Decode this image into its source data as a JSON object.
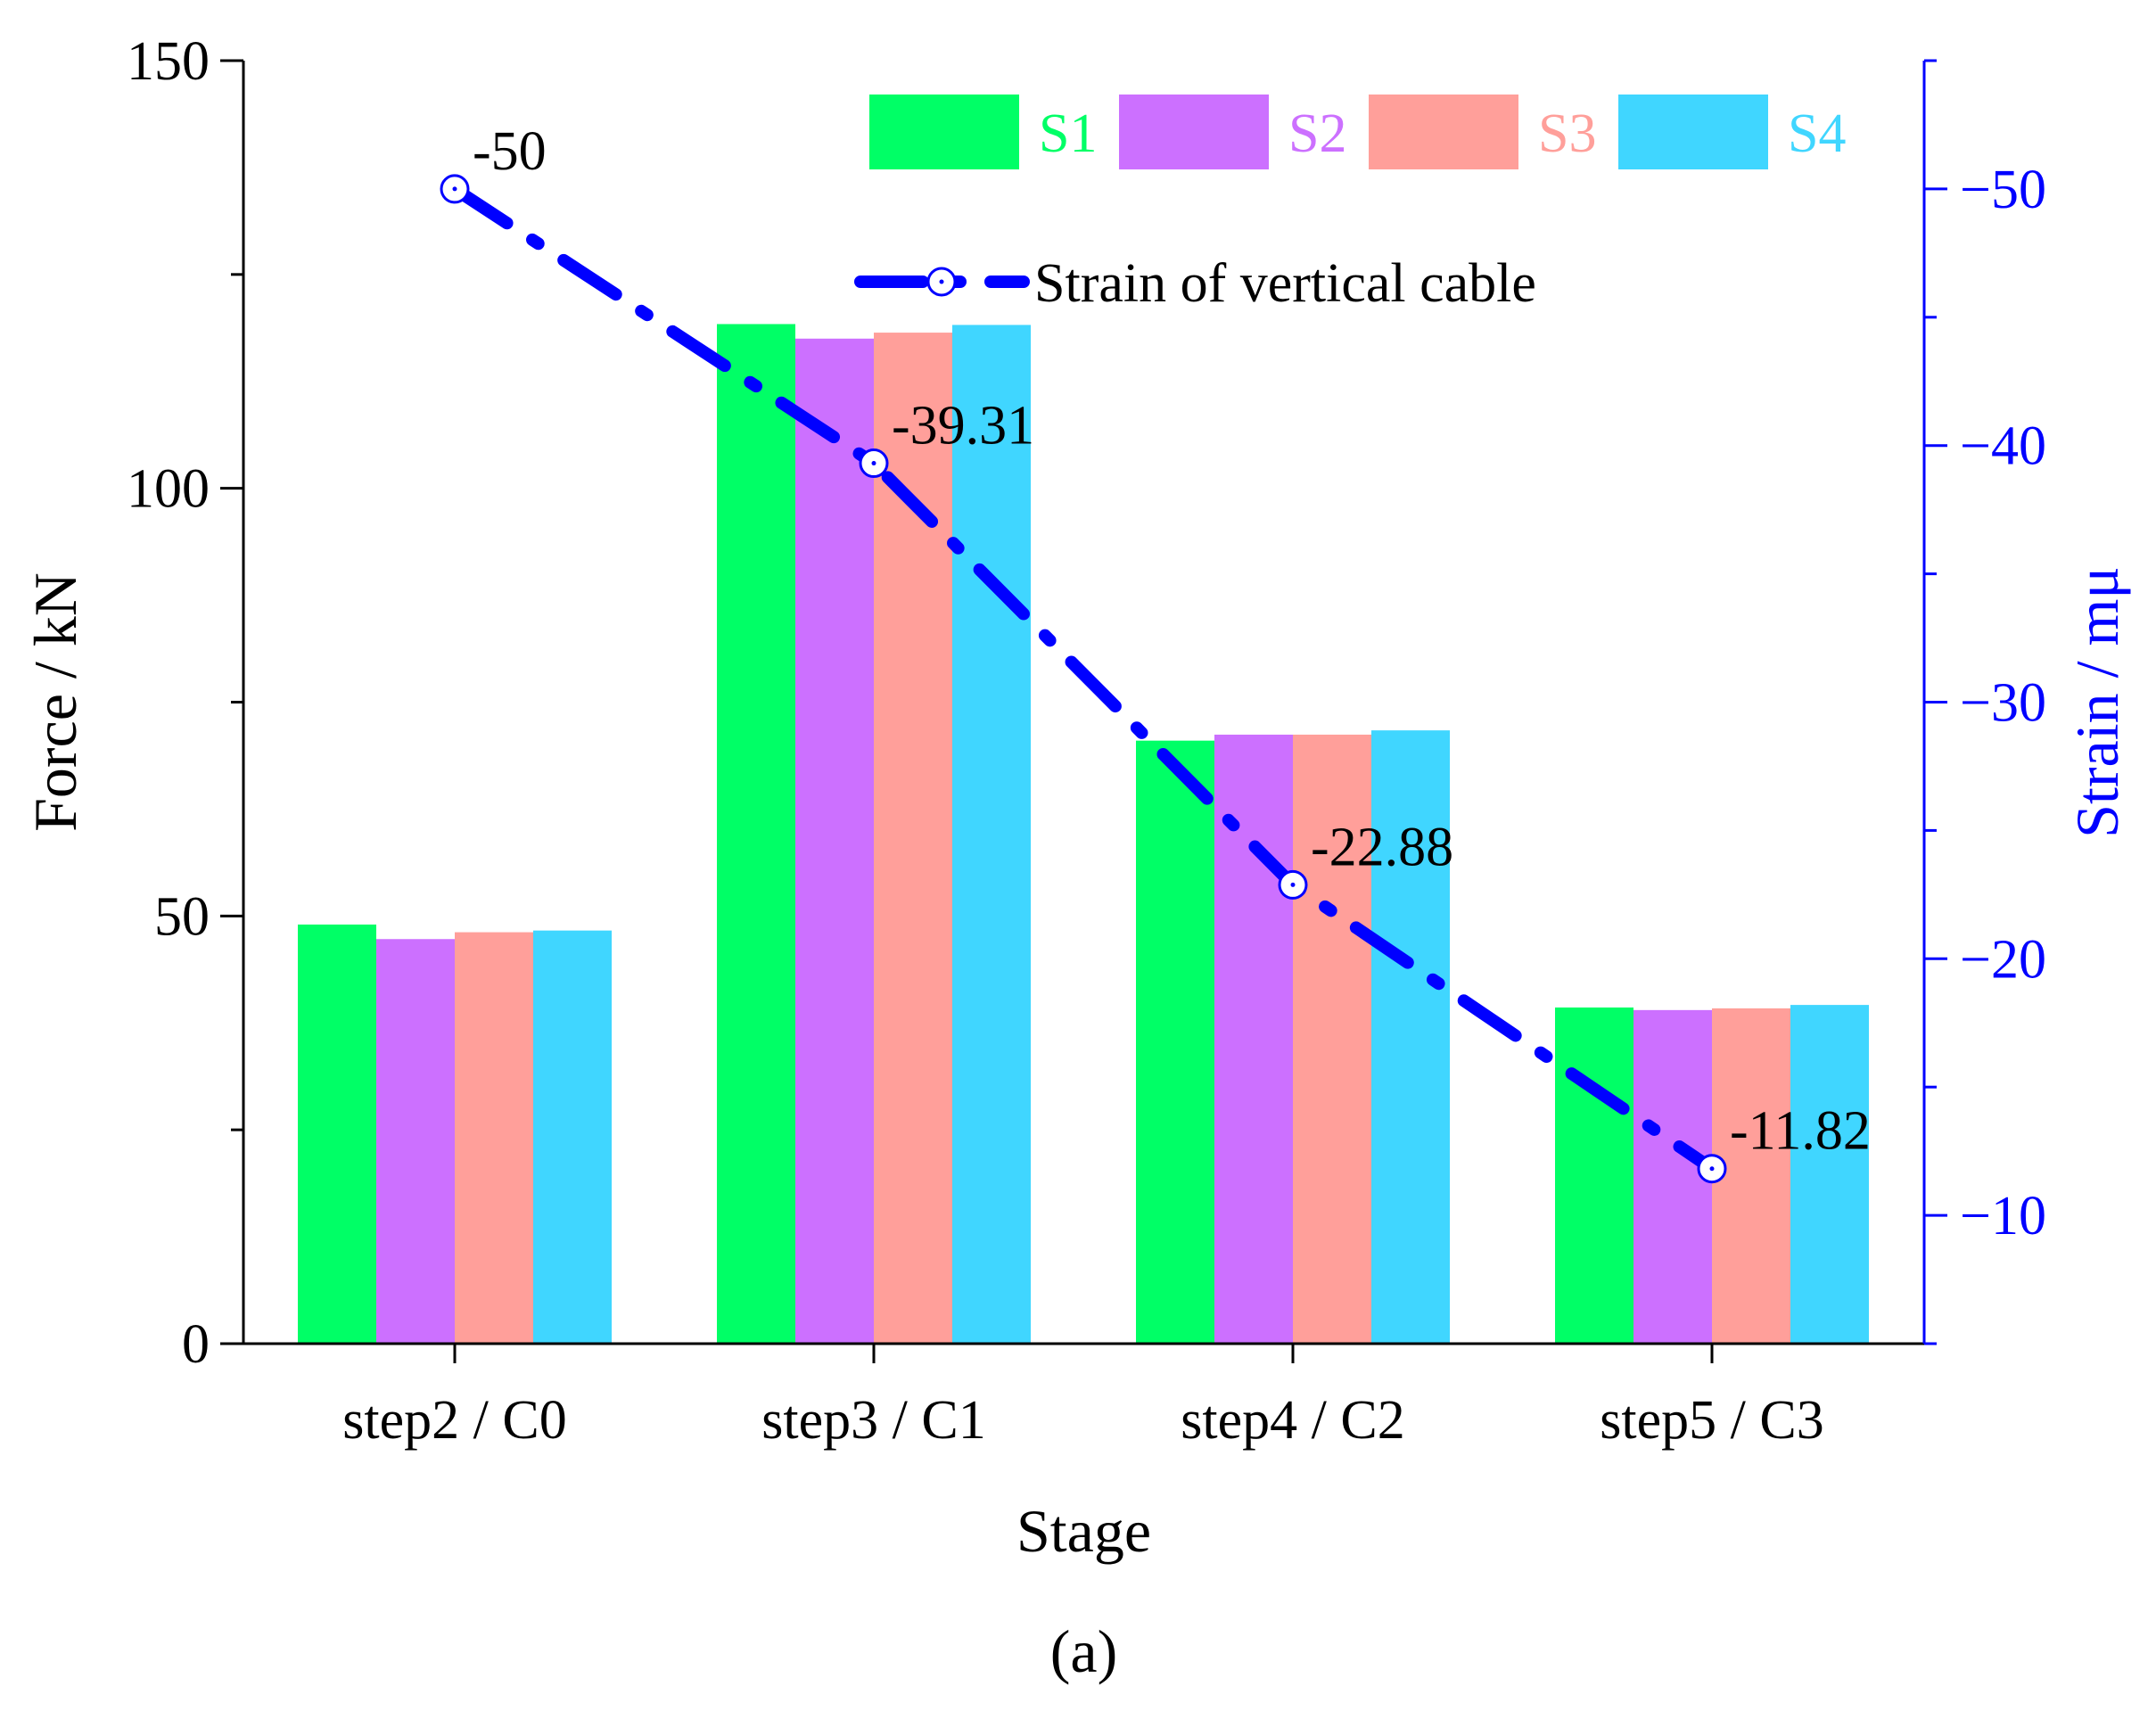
{
  "chart_data": {
    "type": "bar",
    "categories": [
      "step2 / C0",
      "step3 / C1",
      "step4 / C2",
      "step5 / C3"
    ],
    "series": [
      {
        "name": "S1",
        "color": "#00ff66",
        "values": [
          49.0,
          119.2,
          70.5,
          39.3
        ]
      },
      {
        "name": "S2",
        "color": "#cc70ff",
        "values": [
          47.3,
          117.5,
          71.2,
          39.0
        ]
      },
      {
        "name": "S3",
        "color": "#ff9f9a",
        "values": [
          48.1,
          118.2,
          71.2,
          39.2
        ]
      },
      {
        "name": "S4",
        "color": "#40d6ff",
        "values": [
          48.3,
          119.1,
          71.7,
          39.6
        ]
      }
    ],
    "line_series": {
      "name": "Strain of vertical cable",
      "color": "#0000ff",
      "axis": "right",
      "values": [
        -50,
        -39.31,
        -22.88,
        -11.82
      ],
      "labels": [
        "-50",
        "-39.31",
        "-22.88",
        "-11.82"
      ]
    },
    "xlabel": "Stage",
    "ylabel": "Force / kN",
    "y2label": "Strain / mμ",
    "ylim": [
      0,
      150
    ],
    "y2lim": [
      -5,
      -55
    ],
    "y_ticks": [
      "0",
      "50",
      "100",
      "150"
    ],
    "y2_ticks": [
      "−10",
      "−20",
      "−30",
      "−40",
      "−50"
    ],
    "panel_label": "(a)",
    "legend_position": "top-right",
    "grid": false
  }
}
